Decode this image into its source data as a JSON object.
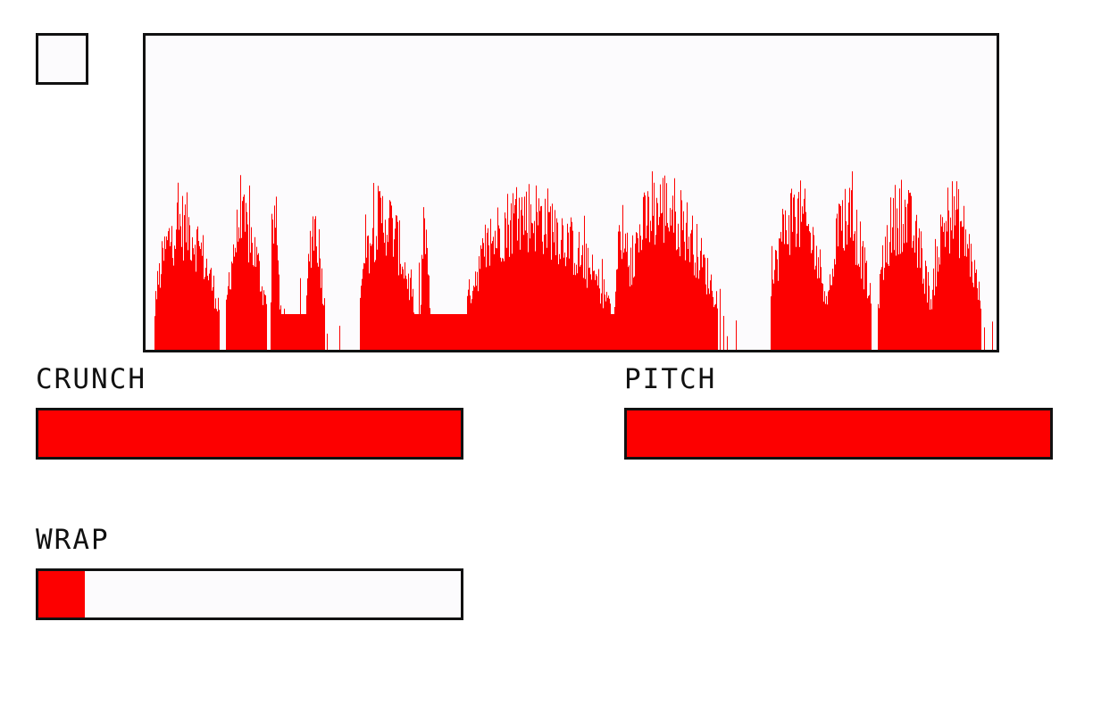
{
  "colors": {
    "accent": "#fd0000",
    "outline": "#111111",
    "background": "#ffffff"
  },
  "toggle": {
    "checked": false
  },
  "controls": {
    "crunch": {
      "label": "CRUNCH",
      "value": 1.0
    },
    "pitch": {
      "label": "PITCH",
      "value": 1.0
    },
    "wrap": {
      "label": "WRAP",
      "value": 0.11
    }
  }
}
